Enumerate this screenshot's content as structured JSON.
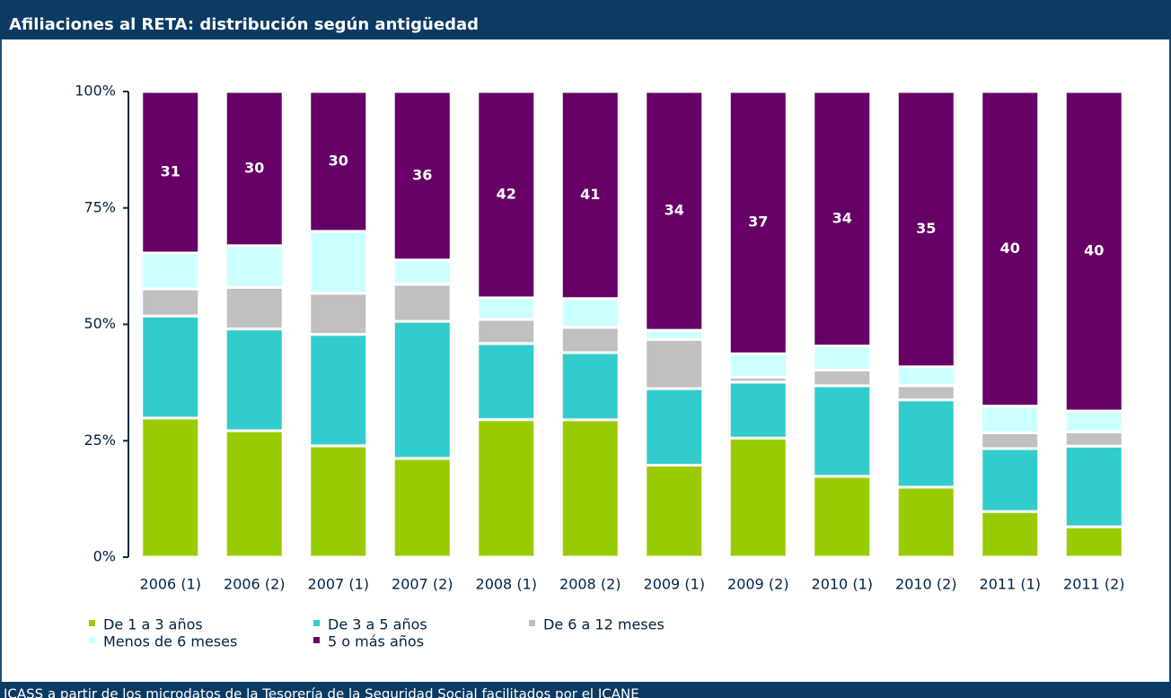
{
  "chart_data": {
    "type": "bar",
    "stacked": "percent",
    "title": "Afiliaciones al RETA: distribución según antigüedad",
    "source": "ICASS a partir de los microdatos de la Tesorería de la Seguridad Social facilitados por el ICANE",
    "categories": [
      "2006 (1)",
      "2006 (2)",
      "2007 (1)",
      "2007 (2)",
      "2008 (1)",
      "2008 (2)",
      "2009 (1)",
      "2009 (2)",
      "2010 (1)",
      "2010 (2)",
      "2011 (1)",
      "2011 (2)"
    ],
    "series": [
      {
        "name": "De 1 a 3 años",
        "color": "#99cc00",
        "values": [
          26.7,
          24.6,
          23.9,
          21.1,
          28.0,
          27.2,
          13.1,
          16.8,
          10.8,
          8.9,
          5.8,
          3.8
        ]
      },
      {
        "name": "De 3 a 5 años",
        "color": "#33cccc",
        "values": [
          19.6,
          19.8,
          23.9,
          29.3,
          15.5,
          13.3,
          10.9,
          7.9,
          12.1,
          11.1,
          8.0,
          10.1
        ]
      },
      {
        "name": "De 6 a 12 meses",
        "color": "#c0c0c0",
        "values": [
          5.2,
          8.1,
          8.8,
          7.9,
          4.9,
          5.0,
          7.0,
          0.7,
          2.1,
          1.8,
          2.0,
          1.8
        ]
      },
      {
        "name": "Menos de 6 meses",
        "color": "#ccffff",
        "values": [
          6.9,
          8.1,
          13.3,
          5.2,
          4.4,
          5.7,
          1.3,
          3.3,
          3.2,
          2.4,
          3.4,
          2.6
        ]
      },
      {
        "name": "5 o más años",
        "color": "#660066",
        "values": [
          31,
          30,
          30,
          36,
          42,
          41,
          34,
          37,
          34,
          35,
          40,
          40
        ],
        "labels": true
      }
    ],
    "ylim": [
      0,
      100
    ],
    "yticks": [
      {
        "value": 0,
        "label": "0%"
      },
      {
        "value": 25,
        "label": "25%"
      },
      {
        "value": 50,
        "label": "50%"
      },
      {
        "value": 75,
        "label": "75%"
      },
      {
        "value": 100,
        "label": "100%"
      }
    ]
  }
}
